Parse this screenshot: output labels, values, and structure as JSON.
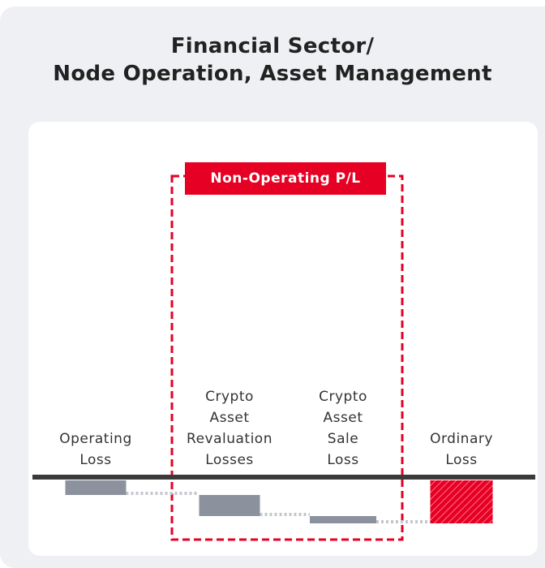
{
  "chart_data": {
    "type": "waterfall",
    "title": "Financial Sector/\nNode Operation, Asset Management",
    "annotation": "Non-Operating P/L",
    "categories": [
      "Operating\nLoss",
      "Crypto\nAsset\nRevaluation\nLosses",
      "Crypto\nAsset\nSale\nLoss",
      "Ordinary\nLoss"
    ],
    "values": [
      -18,
      -26,
      -9,
      -53
    ],
    "colors": [
      "#8b929d",
      "#8b929d",
      "#8b929d",
      "#e60023"
    ]
  }
}
